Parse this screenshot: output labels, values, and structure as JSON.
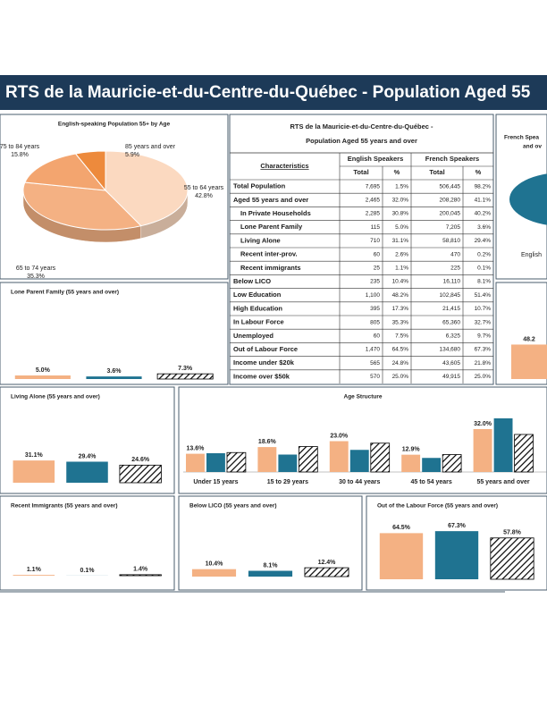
{
  "header": {
    "title": "RTS de la Mauricie-et-du-Centre-du-Québec - Population Aged 55"
  },
  "table": {
    "title": [
      "RTS de la Mauricie-et-du-Centre-du-Québec -",
      "Population Aged 55 years and over"
    ],
    "characteristics": "Characteristics",
    "groups": [
      "English Speakers",
      "French Speakers"
    ],
    "subheaders": [
      "Total",
      "%",
      "Total",
      "%"
    ],
    "rows": [
      [
        "Total Population",
        "7,695",
        "1.5%",
        "506,445",
        "98.2%"
      ],
      [
        "Aged 55 years and over",
        "2,465",
        "32.0%",
        "208,280",
        "41.1%"
      ],
      [
        "In Private Households",
        "2,285",
        "30.8%",
        "200,045",
        "40.2%"
      ],
      [
        "Lone Parent Family",
        "115",
        "5.0%",
        "7,205",
        "3.6%"
      ],
      [
        "Living Alone",
        "710",
        "31.1%",
        "58,810",
        "29.4%"
      ],
      [
        "Recent inter-prov.",
        "60",
        "2.6%",
        "470",
        "0.2%"
      ],
      [
        "Recent immigrants",
        "25",
        "1.1%",
        "225",
        "0.1%"
      ],
      [
        "Below LICO",
        "235",
        "10.4%",
        "16,110",
        "8.1%"
      ],
      [
        "Low Education",
        "1,100",
        "48.2%",
        "102,845",
        "51.4%"
      ],
      [
        "High Education",
        "395",
        "17.3%",
        "21,415",
        "10.7%"
      ],
      [
        "In Labour Force",
        "805",
        "35.3%",
        "65,360",
        "32.7%"
      ],
      [
        "Unemployed",
        "60",
        "7.5%",
        "6,325",
        "9.7%"
      ],
      [
        "Out of Labour Force",
        "1,470",
        "64.5%",
        "134,680",
        "67.3%"
      ],
      [
        "Income under $20k",
        "565",
        "24.8%",
        "43,605",
        "21.8%"
      ],
      [
        "Income over $50k",
        "570",
        "25.0%",
        "49,915",
        "25.0%"
      ]
    ]
  },
  "chart_data": [
    {
      "type": "pie",
      "title": "English-speaking Population 55+ by Age",
      "categories": [
        "55 to 64 years",
        "65 to 74 years",
        "75 to 84 years",
        "85 years and over"
      ],
      "values": [
        42.8,
        35.3,
        15.8,
        5.9
      ],
      "value_labels": [
        "42.8%",
        "35.3%",
        "15.8%",
        "5.9%"
      ],
      "colors": [
        "#fbd9c0",
        "#f4b183",
        "#f3a56f",
        "#ed8a3c"
      ]
    },
    {
      "type": "pie",
      "title": "French Spea",
      "subtitle": "and ov",
      "annotations": [
        "English"
      ],
      "colors": [
        "#1f7391"
      ]
    },
    {
      "type": "bar",
      "title": "Lone Parent Family (55 years and over)",
      "values": [
        5.0,
        3.6,
        7.3
      ],
      "value_labels": [
        "5.0%",
        "3.6%",
        "7.3%"
      ],
      "colors": [
        "#f4b183",
        "#1f7391",
        "#000000"
      ],
      "hatched": [
        false,
        false,
        true
      ]
    },
    {
      "type": "bar",
      "values": [
        48.2
      ],
      "value_labels": [
        "48.2"
      ],
      "colors": [
        "#f4b183"
      ],
      "hatched": [
        false
      ]
    },
    {
      "type": "bar",
      "title": "Living Alone (55 years and over)",
      "values": [
        31.1,
        29.4,
        24.6
      ],
      "value_labels": [
        "31.1%",
        "29.4%",
        "24.6%"
      ],
      "colors": [
        "#f4b183",
        "#1f7391",
        "#000000"
      ],
      "hatched": [
        false,
        false,
        true
      ]
    },
    {
      "type": "bar",
      "title": "Age Structure",
      "categories": [
        "Under 15 years",
        "15 to 29 years",
        "30 to 44 years",
        "45 to 54 years",
        "55 years and over"
      ],
      "series": [
        {
          "color": "#f4b183",
          "hatched": false,
          "values": [
            13.6,
            18.6,
            23.0,
            12.9,
            32.0
          ],
          "value_labels": [
            "13.6%",
            "18.6%",
            "23.0%",
            "12.9%",
            "32.0%"
          ]
        },
        {
          "color": "#1f7391",
          "hatched": false,
          "values": [
            14.0,
            13.0,
            16.5,
            10.5,
            40.0
          ]
        },
        {
          "color": "#000000",
          "hatched": true,
          "values": [
            14.5,
            19.0,
            21.5,
            13.0,
            28.0
          ]
        }
      ]
    },
    {
      "type": "bar",
      "title": "Recent Immigrants (55 years and over)",
      "values": [
        1.1,
        0.1,
        1.4
      ],
      "value_labels": [
        "1.1%",
        "0.1%",
        "1.4%"
      ],
      "colors": [
        "#f4b183",
        "#1f7391",
        "#000000"
      ],
      "hatched": [
        false,
        false,
        true
      ]
    },
    {
      "type": "bar",
      "title": "Below LICO (55 years and over)",
      "values": [
        10.4,
        8.1,
        12.4
      ],
      "value_labels": [
        "10.4%",
        "8.1%",
        "12.4%"
      ],
      "colors": [
        "#f4b183",
        "#1f7391",
        "#000000"
      ],
      "hatched": [
        false,
        false,
        true
      ]
    },
    {
      "type": "bar",
      "title": "Out of the Labour Force (55 years and over)",
      "values": [
        64.5,
        67.3,
        57.8
      ],
      "value_labels": [
        "64.5%",
        "67.3%",
        "57.8%"
      ],
      "colors": [
        "#f4b183",
        "#1f7391",
        "#000000"
      ],
      "hatched": [
        false,
        false,
        true
      ]
    }
  ]
}
